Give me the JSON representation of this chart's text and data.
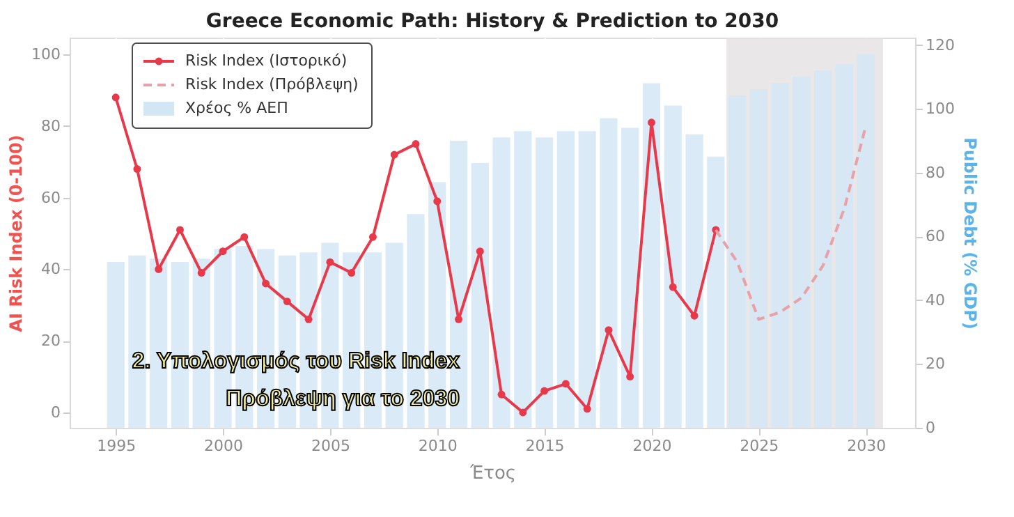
{
  "chart_data": {
    "type": "bar",
    "title": "Greece Economic Path: History & Prediction to 2030",
    "xlabel": "Έτος",
    "ylabel": "AI Risk Index (0-100)",
    "y2label": "Public Debt (% GDP)",
    "xlim": [
      1992.85,
      2032.3
    ],
    "xticks": [
      1995,
      2000,
      2005,
      2010,
      2015,
      2020,
      2025,
      2030
    ],
    "ylim": [
      -4.3,
      104.7
    ],
    "yticks": [
      0,
      20,
      40,
      60,
      80,
      100
    ],
    "y2lim": [
      0,
      122.3
    ],
    "y2ticks": [
      0,
      20,
      40,
      60,
      80,
      100,
      120
    ],
    "grid": true,
    "legend": "top left",
    "bands": [
      {
        "axis": "x",
        "from": 2023.5,
        "to": 2030.8,
        "color": "#e4e1e1"
      }
    ],
    "series": [
      {
        "name": "Χρέος % ΑΕΠ",
        "axis": "y2",
        "color": "#d3e6f4",
        "x": [
          1995,
          1996,
          1997,
          1998,
          1999,
          2000,
          2001,
          2002,
          2003,
          2004,
          2005,
          2006,
          2007,
          2008,
          2009,
          2010,
          2011,
          2012,
          2013,
          2014,
          2015,
          2016,
          2017,
          2018,
          2019,
          2020,
          2021,
          2022,
          2023,
          2024,
          2025,
          2026,
          2027,
          2028,
          2029,
          2030
        ],
        "values": [
          52,
          54,
          53,
          52,
          53,
          56,
          57,
          56,
          54,
          55,
          58,
          55,
          55,
          58,
          67,
          77,
          90,
          83,
          91,
          93,
          91,
          93,
          93,
          97,
          94,
          108,
          101,
          92,
          85,
          104,
          106,
          108,
          110,
          112,
          114,
          117
        ]
      },
      {
        "name": "Risk Index (Ιστορικό)",
        "type": "line",
        "color": "#e8394a",
        "marker": "circle",
        "line_style": "solid",
        "x": [
          1995,
          1996,
          1997,
          1998,
          1999,
          2000,
          2001,
          2002,
          2003,
          2004,
          2005,
          2006,
          2007,
          2008,
          2009,
          2010,
          2011,
          2012,
          2013,
          2014,
          2015,
          2016,
          2017,
          2018,
          2019,
          2020,
          2021,
          2022,
          2023
        ],
        "values": [
          88,
          68,
          40,
          51,
          39,
          45,
          49,
          36,
          31,
          26,
          42,
          39,
          49,
          72,
          75,
          59,
          26,
          45,
          5,
          0,
          6,
          8,
          1,
          23,
          10,
          81,
          35,
          27,
          51
        ]
      },
      {
        "name": "Risk Index (Πρόβλεψη)",
        "type": "line",
        "color": "#e8a0aa",
        "marker": "none",
        "line_style": "dashed",
        "x": [
          2023,
          2024,
          2025,
          2026,
          2027,
          2028,
          2029,
          2030
        ],
        "values": [
          51,
          42,
          26,
          28,
          32,
          41,
          57,
          80
        ]
      }
    ],
    "annotations": [
      "2.  Υπολογισμός του Risk Index",
      "Πρόβλεψη για το 2030"
    ]
  }
}
